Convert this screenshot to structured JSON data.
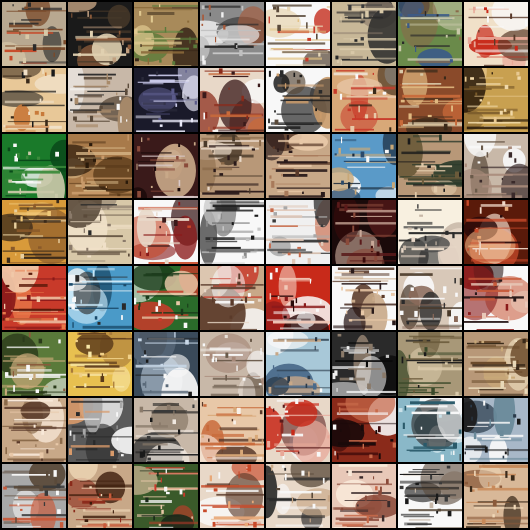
{
  "grid": {
    "rows": 8,
    "cols": 8,
    "background": "#000000",
    "tiles": [
      {
        "bg": "#b8a890",
        "c": [
          "#7a4a2a",
          "#d8c8a8",
          "#2a2a2a",
          "#c84a2a"
        ],
        "s": "stripes"
      },
      {
        "bg": "#1a1a1a",
        "c": [
          "#8a5a3a",
          "#e0d0b0",
          "#4a3a2a",
          "#c0a080"
        ],
        "s": "dark"
      },
      {
        "bg": "#a88a5a",
        "c": [
          "#5a7a3a",
          "#e0c890",
          "#3a2a1a",
          "#8a6a3a"
        ],
        "s": "stripes"
      },
      {
        "bg": "#8a8a8a",
        "c": [
          "#f0f0f0",
          "#2a2a2a",
          "#a85a3a",
          "#c0c0c0"
        ],
        "s": "blob"
      },
      {
        "bg": "#f8f8f8",
        "c": [
          "#c83a2a",
          "#e8d8b8",
          "#5a4a3a",
          "#e0c080"
        ],
        "s": "stripes"
      },
      {
        "bg": "#c8b898",
        "c": [
          "#3a3a3a",
          "#8a7a6a",
          "#2a2a2a",
          "#d8c8a8"
        ],
        "s": "stripes"
      },
      {
        "bg": "#6a8a4a",
        "c": [
          "#3a5a8a",
          "#2a2a2a",
          "#c8c8a8",
          "#8a6a4a"
        ],
        "s": "blob"
      },
      {
        "bg": "#f0e0c8",
        "c": [
          "#c82a1a",
          "#e8a898",
          "#5a3a2a",
          "#f8f8f8"
        ],
        "s": "blob"
      },
      {
        "bg": "#e8c898",
        "c": [
          "#1a1a1a",
          "#c87a3a",
          "#f0e0c8",
          "#3a2a1a"
        ],
        "s": "dark"
      },
      {
        "bg": "#c8b8a8",
        "c": [
          "#f8f8f8",
          "#5a4a3a",
          "#a88a6a",
          "#2a2a2a"
        ],
        "s": "stripes"
      },
      {
        "bg": "#1a1a2a",
        "c": [
          "#c8c8e8",
          "#5a5a8a",
          "#e8e8f8",
          "#2a2a3a"
        ],
        "s": "stripes"
      },
      {
        "bg": "#e8d8c8",
        "c": [
          "#8a2a1a",
          "#f8f8f8",
          "#c86a3a",
          "#3a1a1a"
        ],
        "s": "blob"
      },
      {
        "bg": "#f8f8f8",
        "c": [
          "#1a1a1a",
          "#5a4a3a",
          "#c89a6a",
          "#2a2a2a"
        ],
        "s": "blob"
      },
      {
        "bg": "#d8a878",
        "c": [
          "#c83a2a",
          "#f8f8f8",
          "#3a2a1a",
          "#e8c8a8"
        ],
        "s": "blob"
      },
      {
        "bg": "#8a4a2a",
        "c": [
          "#e0b880",
          "#3a2a1a",
          "#c86a3a",
          "#d8c8a8"
        ],
        "s": "stripes"
      },
      {
        "bg": "#c8a050",
        "c": [
          "#e8c890",
          "#7a5a2a",
          "#2a1a0a",
          "#f0d8a8"
        ],
        "s": "stripes"
      },
      {
        "bg": "#1a7a2a",
        "c": [
          "#0a4a1a",
          "#f8f8f8",
          "#3a8a3a",
          "#c8c8a8"
        ],
        "s": "blob"
      },
      {
        "bg": "#a87a4a",
        "c": [
          "#5a3a1a",
          "#d8b888",
          "#2a1a0a",
          "#c89a6a"
        ],
        "s": "stripes"
      },
      {
        "bg": "#3a1a1a",
        "c": [
          "#8a4a3a",
          "#d8c8c8",
          "#1a0a0a",
          "#c8a888"
        ],
        "s": "dark"
      },
      {
        "bg": "#b89878",
        "c": [
          "#4a3a2a",
          "#e8d8c8",
          "#8a6a4a",
          "#2a1a1a"
        ],
        "s": "stripes"
      },
      {
        "bg": "#c8a888",
        "c": [
          "#5a3a2a",
          "#e8c8a8",
          "#2a1a1a",
          "#a87a5a"
        ],
        "s": "stripes"
      },
      {
        "bg": "#5a9ac8",
        "c": [
          "#f8f8f8",
          "#2a4a6a",
          "#c8a878",
          "#1a2a3a"
        ],
        "s": "blob"
      },
      {
        "bg": "#b89878",
        "c": [
          "#2a3a2a",
          "#e0c8a8",
          "#6a5a3a",
          "#1a1a1a"
        ],
        "s": "stripes"
      },
      {
        "bg": "#c8b8a8",
        "c": [
          "#f8f8f8",
          "#6a5a4a",
          "#a88a7a",
          "#3a2a2a"
        ],
        "s": "blob"
      },
      {
        "bg": "#d89a3a",
        "c": [
          "#f0c878",
          "#8a5a2a",
          "#3a2a1a",
          "#e8d0a0"
        ],
        "s": "stripes"
      },
      {
        "bg": "#d8c8a8",
        "c": [
          "#8a7a6a",
          "#f0e0c8",
          "#5a4a3a",
          "#2a2a2a"
        ],
        "s": "stripes"
      },
      {
        "bg": "#f8f8f8",
        "c": [
          "#8a1a1a",
          "#3a1a1a",
          "#c84a2a",
          "#e8d8c8"
        ],
        "s": "blob"
      },
      {
        "bg": "#f8f8f8",
        "c": [
          "#1a1a1a",
          "#5a5a5a",
          "#c8c8c8",
          "#8a8a8a"
        ],
        "s": "stripes"
      },
      {
        "bg": "#f0f0f0",
        "c": [
          "#c86a4a",
          "#3a3a3a",
          "#a8a8a8",
          "#e0c8b8"
        ],
        "s": "stripes"
      },
      {
        "bg": "#1a0a0a",
        "c": [
          "#5a1a1a",
          "#c8a898",
          "#3a0a0a",
          "#8a4a3a"
        ],
        "s": "dark"
      },
      {
        "bg": "#f8f0e0",
        "c": [
          "#4a4a4a",
          "#c8b8a8",
          "#2a2a2a",
          "#e8d8c8"
        ],
        "s": "blob"
      },
      {
        "bg": "#5a1a0a",
        "c": [
          "#c84a2a",
          "#f0d8c8",
          "#2a0a0a",
          "#e8a878"
        ],
        "s": "dark"
      },
      {
        "bg": "#c83a2a",
        "c": [
          "#e87a4a",
          "#8a1a1a",
          "#f0c8a8",
          "#5a1a0a"
        ],
        "s": "stripes"
      },
      {
        "bg": "#4a9ac8",
        "c": [
          "#f8f8f8",
          "#1a4a6a",
          "#c8e8f8",
          "#2a2a2a"
        ],
        "s": "blob"
      },
      {
        "bg": "#2a6a2a",
        "c": [
          "#c83a2a",
          "#f8f8f8",
          "#1a3a1a",
          "#e8c8a8"
        ],
        "s": "blob"
      },
      {
        "bg": "#c8a888",
        "c": [
          "#f8f8f8",
          "#c83a2a",
          "#5a3a2a",
          "#e8d8c8"
        ],
        "s": "blob"
      },
      {
        "bg": "#c82a1a",
        "c": [
          "#f8f8f8",
          "#8a1a1a",
          "#f0c8b8",
          "#2a0a0a"
        ],
        "s": "blob"
      },
      {
        "bg": "#f8f8f8",
        "c": [
          "#5a3a2a",
          "#c8a888",
          "#2a1a1a",
          "#e8c8a8"
        ],
        "s": "stripes"
      },
      {
        "bg": "#d8c8b8",
        "c": [
          "#f8f8f8",
          "#4a3a2a",
          "#8a6a5a",
          "#2a2a2a"
        ],
        "s": "blob"
      },
      {
        "bg": "#f8f8f8",
        "c": [
          "#8a1a1a",
          "#c85a3a",
          "#2a1a1a",
          "#e8c8b8"
        ],
        "s": "blob"
      },
      {
        "bg": "#5a7a3a",
        "c": [
          "#f8f8f8",
          "#2a3a1a",
          "#c8a878",
          "#8a5a3a"
        ],
        "s": "stripes"
      },
      {
        "bg": "#e8c050",
        "c": [
          "#f8e8a8",
          "#a87a3a",
          "#5a3a1a",
          "#f0d088"
        ],
        "s": "stripes"
      },
      {
        "bg": "#3a4a5a",
        "c": [
          "#f8f8f8",
          "#1a1a1a",
          "#c8d8e8",
          "#5a6a7a"
        ],
        "s": "blob"
      },
      {
        "bg": "#c8b8a8",
        "c": [
          "#f8f8f8",
          "#6a5a4a",
          "#a88a7a",
          "#e8e0d8"
        ],
        "s": "blob"
      },
      {
        "bg": "#a8c8d8",
        "c": [
          "#f8f8f8",
          "#4a6a8a",
          "#c8a888",
          "#2a3a4a"
        ],
        "s": "blob"
      },
      {
        "bg": "#2a2a2a",
        "c": [
          "#c8c8c8",
          "#0a0a0a",
          "#8a7a6a",
          "#f0f0f0"
        ],
        "s": "dark"
      },
      {
        "bg": "#a89878",
        "c": [
          "#3a4a2a",
          "#d8c8a8",
          "#6a5a3a",
          "#1a1a1a"
        ],
        "s": "stripes"
      },
      {
        "bg": "#b89878",
        "c": [
          "#e8d8b8",
          "#6a4a2a",
          "#c8a878",
          "#3a2a1a"
        ],
        "s": "stripes"
      },
      {
        "bg": "#c8a888",
        "c": [
          "#f8e8d8",
          "#8a6a4a",
          "#5a3a2a",
          "#e8c8a8"
        ],
        "s": "stripes"
      },
      {
        "bg": "#5a5a5a",
        "c": [
          "#f8f8f8",
          "#d89a6a",
          "#2a2a2a",
          "#a8a8a8"
        ],
        "s": "blob"
      },
      {
        "bg": "#c8b8a8",
        "c": [
          "#3a3a3a",
          "#f0e8e0",
          "#8a7a6a",
          "#1a1a1a"
        ],
        "s": "stripes"
      },
      {
        "bg": "#e8c8a8",
        "c": [
          "#c86a3a",
          "#f8f0e8",
          "#5a3a2a",
          "#d8a878"
        ],
        "s": "stripes"
      },
      {
        "bg": "#e8d8c8",
        "c": [
          "#c82a1a",
          "#f8f8f8",
          "#5a1a1a",
          "#e8a898"
        ],
        "s": "blob"
      },
      {
        "bg": "#8a2a1a",
        "c": [
          "#f8f8f8",
          "#3a0a0a",
          "#c86a4a",
          "#1a0a0a"
        ],
        "s": "dark"
      },
      {
        "bg": "#8ab8c8",
        "c": [
          "#f8f8f8",
          "#2a5a6a",
          "#c8e0e8",
          "#3a3a3a"
        ],
        "s": "blob"
      },
      {
        "bg": "#a8b8c8",
        "c": [
          "#f8f8f8",
          "#2a3a4a",
          "#6a8a9a",
          "#1a1a1a"
        ],
        "s": "blob"
      },
      {
        "bg": "#a8a8a8",
        "c": [
          "#f8f8f8",
          "#5a4a3a",
          "#c85a3a",
          "#3a3a3a"
        ],
        "s": "stripes"
      },
      {
        "bg": "#c8a888",
        "c": [
          "#8a2a1a",
          "#f0d8b8",
          "#3a1a0a",
          "#c85a3a"
        ],
        "s": "stripes"
      },
      {
        "bg": "#3a5a2a",
        "c": [
          "#e8c8a8",
          "#c83a2a",
          "#1a2a1a",
          "#f8f8f8"
        ],
        "s": "stripes"
      },
      {
        "bg": "#e8d8c8",
        "c": [
          "#c84a2a",
          "#f8f8f8",
          "#5a3a2a",
          "#e8a878"
        ],
        "s": "stripes"
      },
      {
        "bg": "#e8d8c8",
        "c": [
          "#2a2a2a",
          "#c8a888",
          "#5a4a3a",
          "#f8f8f8"
        ],
        "s": "blob"
      },
      {
        "bg": "#e8c8b8",
        "c": [
          "#c86a4a",
          "#f8e8d8",
          "#8a4a3a",
          "#3a2a2a"
        ],
        "s": "stripes"
      },
      {
        "bg": "#f8f8f8",
        "c": [
          "#3a3a3a",
          "#c8b8a8",
          "#5a4a3a",
          "#1a1a1a"
        ],
        "s": "stripes"
      },
      {
        "bg": "#d8b898",
        "c": [
          "#8a5a3a",
          "#f0d8b8",
          "#3a2a1a",
          "#c88a5a"
        ],
        "s": "stripes"
      }
    ]
  }
}
